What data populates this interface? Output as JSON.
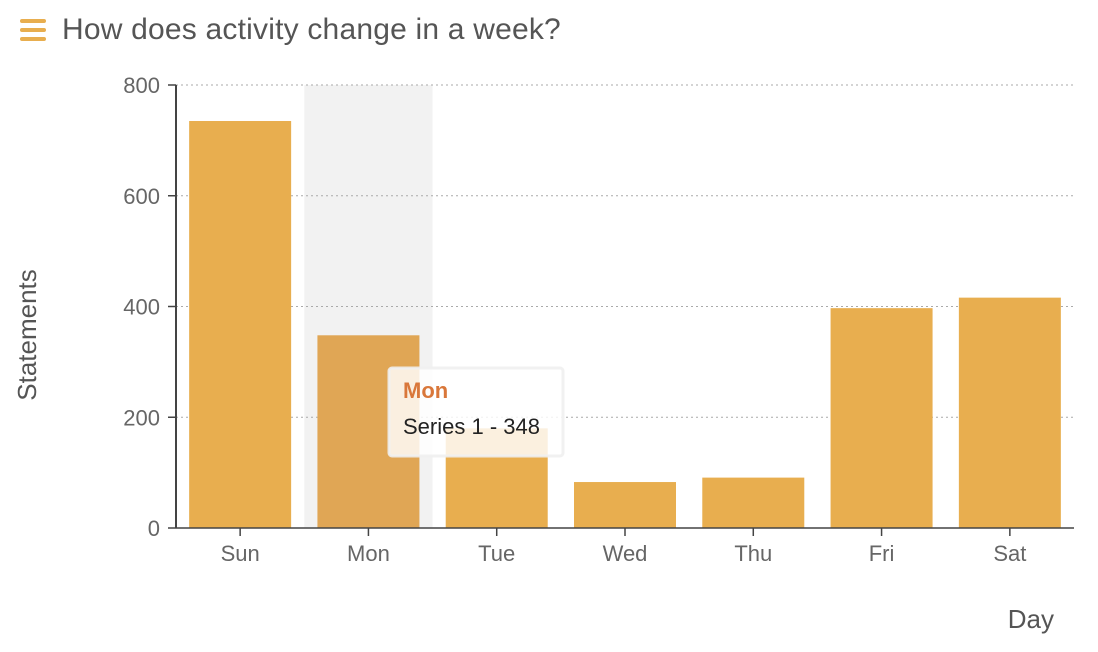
{
  "header": {
    "title": "How does activity change in a week?",
    "menu_icon": "hamburger-menu-icon"
  },
  "colors": {
    "bar": "#e8ae4f",
    "bar_hover": "#e0a655",
    "hover_band": "#f2f2f2",
    "tooltip_title": "#d9773a",
    "accent": "#e8ae4f"
  },
  "chart_data": {
    "type": "bar",
    "categories": [
      "Sun",
      "Mon",
      "Tue",
      "Wed",
      "Thu",
      "Fri",
      "Sat"
    ],
    "series": [
      {
        "name": "Series 1",
        "values": [
          735,
          348,
          180,
          83,
          91,
          397,
          416
        ]
      }
    ],
    "xlabel": "Day",
    "ylabel": "Statements",
    "ylim": [
      0,
      800
    ],
    "yticks": [
      0,
      200,
      400,
      600,
      800
    ],
    "grid": true,
    "hovered_category": "Mon"
  },
  "tooltip": {
    "title": "Mon",
    "text": "Series 1 - 348"
  }
}
